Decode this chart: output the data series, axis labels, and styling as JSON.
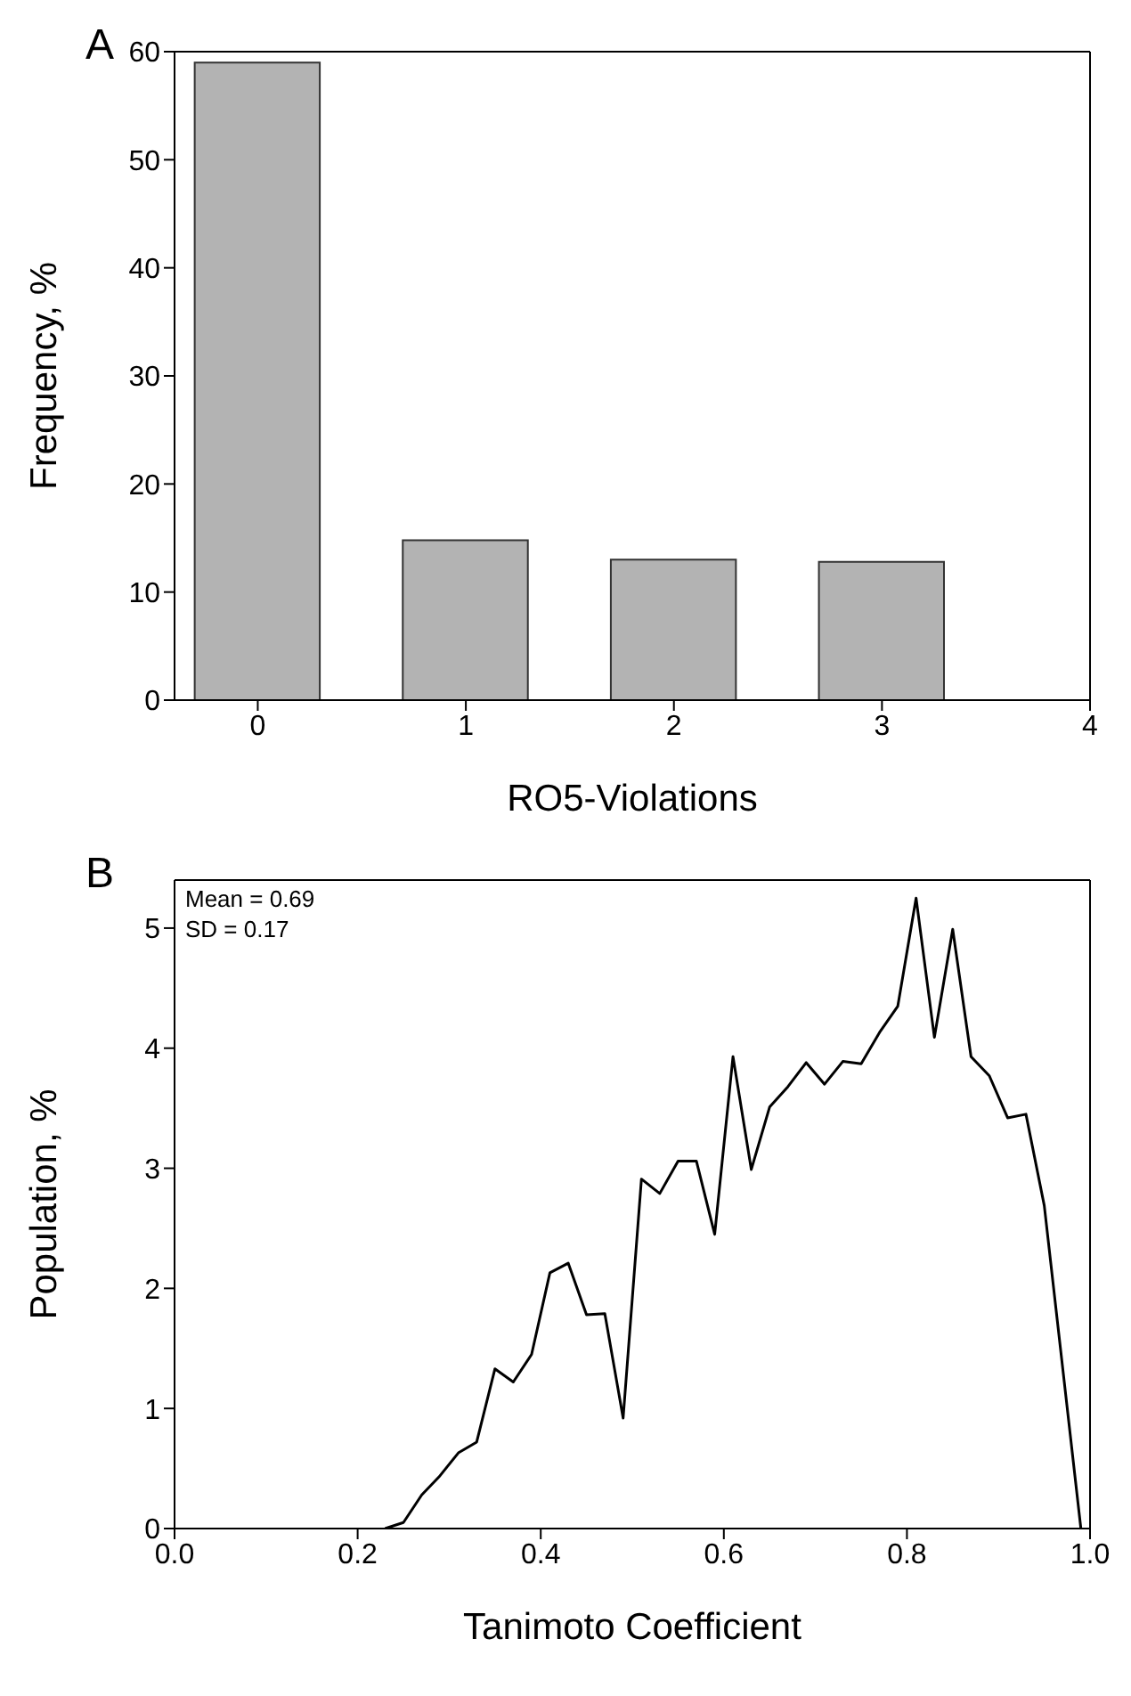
{
  "chart_data": [
    {
      "type": "bar",
      "title": "A",
      "xlabel": "RO5-Violations",
      "ylabel": "Frequency, %",
      "x": [
        0,
        1,
        2,
        3
      ],
      "values": [
        59,
        14.8,
        13,
        12.8
      ],
      "color": "#b3b3b3",
      "xlim": [
        -0.4,
        4
      ],
      "xticks": [
        0,
        1,
        2,
        3,
        4
      ],
      "ylim": [
        0,
        60
      ],
      "yticks": [
        0,
        10,
        20,
        30,
        40,
        50,
        60
      ]
    },
    {
      "type": "line",
      "title": "B",
      "xlabel": "Tanimoto Coefficient",
      "ylabel": "Population, %",
      "annotations": [
        "Mean = 0.69",
        "SD = 0.17"
      ],
      "color": "#000000",
      "marker": "none",
      "x": [
        0.23,
        0.25,
        0.27,
        0.29,
        0.31,
        0.33,
        0.35,
        0.37,
        0.39,
        0.41,
        0.43,
        0.45,
        0.47,
        0.49,
        0.51,
        0.53,
        0.55,
        0.57,
        0.59,
        0.61,
        0.63,
        0.65,
        0.67,
        0.69,
        0.71,
        0.73,
        0.75,
        0.77,
        0.79,
        0.81,
        0.83,
        0.85,
        0.87,
        0.89,
        0.91,
        0.93,
        0.95,
        0.99
      ],
      "values": [
        0,
        0.05,
        0.28,
        0.44,
        0.63,
        0.72,
        1.33,
        1.22,
        1.45,
        2.13,
        2.21,
        1.78,
        1.79,
        0.92,
        2.91,
        2.79,
        3.06,
        3.06,
        2.45,
        3.93,
        2.99,
        3.51,
        3.68,
        3.88,
        3.7,
        3.89,
        3.87,
        4.13,
        4.35,
        5.25,
        4.09,
        4.99,
        3.93,
        3.77,
        3.42,
        3.45,
        2.69,
        0
      ],
      "xlim": [
        0,
        1
      ],
      "xticks": [
        {
          "value": 0,
          "label": "0.0"
        },
        0.2,
        0.4,
        0.6,
        0.8,
        {
          "value": 1,
          "label": "1.0"
        }
      ],
      "ylim": [
        0,
        5.4
      ],
      "yticks": [
        0,
        1,
        2,
        3,
        4,
        5
      ]
    }
  ]
}
